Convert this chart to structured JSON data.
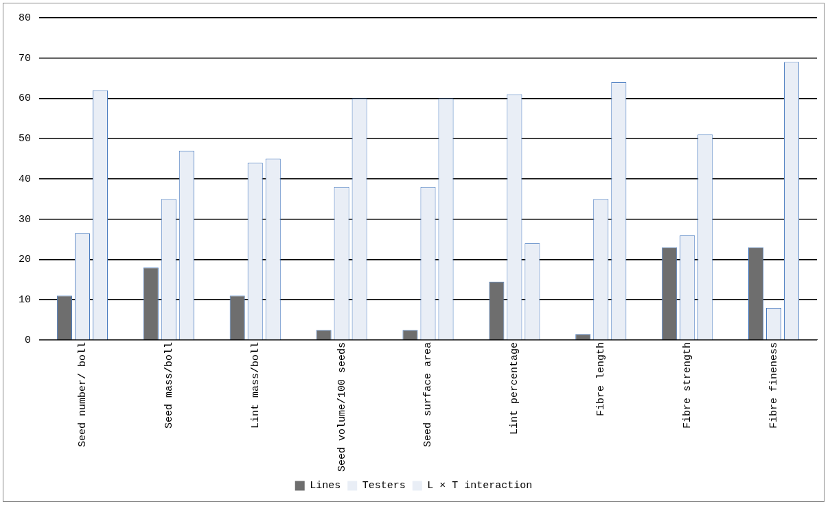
{
  "chart_data": {
    "type": "bar",
    "categories": [
      "Seed number/ boll",
      "Seed mass/boll",
      "Lint mass/boll",
      "Seed volume/100 seeds",
      "Seed surface area",
      "Lint percentage",
      "Fibre length",
      "Fibre strength",
      "Fibre fineness"
    ],
    "series": [
      {
        "name": "Lines",
        "color": "#6e6e6e",
        "values": [
          11,
          18,
          11,
          2.5,
          2.5,
          14.5,
          1.5,
          23,
          23
        ]
      },
      {
        "name": "Testers",
        "color": "#e9eef6",
        "values": [
          26.5,
          35,
          44,
          38,
          38,
          61,
          35,
          26,
          8
        ]
      },
      {
        "name": "L × T interaction",
        "color": "#e9eef6",
        "values": [
          62,
          47,
          45,
          60,
          60,
          24,
          64,
          51,
          69
        ]
      }
    ],
    "ylim": [
      0,
      80
    ],
    "yticks": [
      0,
      10,
      20,
      30,
      40,
      50,
      60,
      70,
      80
    ],
    "grid": "y",
    "legend": "bottom"
  }
}
